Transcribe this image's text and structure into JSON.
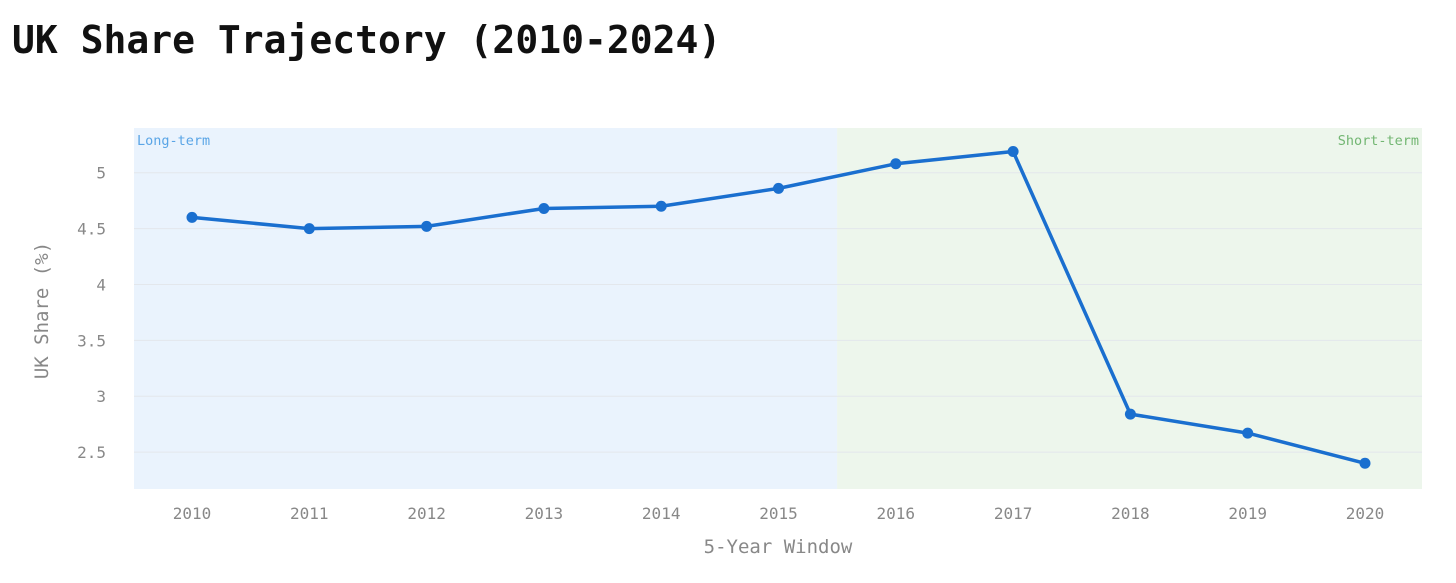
{
  "chart_data": {
    "type": "line",
    "title": "UK Share Trajectory (2010-2024)",
    "xlabel": "5-Year Window",
    "ylabel": "UK Share (%)",
    "categories": [
      "2010",
      "2011",
      "2012",
      "2013",
      "2014",
      "2015",
      "2016",
      "2017",
      "2018",
      "2019",
      "2020"
    ],
    "series": [
      {
        "values": [
          4.6,
          4.5,
          4.52,
          4.68,
          4.7,
          4.86,
          5.08,
          5.19,
          2.84,
          2.67,
          2.4
        ],
        "color": "#1a6fcf"
      }
    ],
    "ylim": [
      2.17,
      5.4
    ],
    "yticks": [
      2.5,
      3,
      3.5,
      4,
      4.5,
      5
    ],
    "ytick_labels": [
      "2.5",
      "3",
      "3.5",
      "4",
      "4.5",
      "5"
    ],
    "grid": true,
    "regions": [
      {
        "label": "Long-term",
        "from": "2010",
        "to": "2015",
        "fill": "#eaf3fd",
        "label_color": "#5aa5e6",
        "label_position": "top-left"
      },
      {
        "label": "Short-term",
        "from": "2016",
        "to": "2020",
        "fill": "#edf6ec",
        "label_color": "#72b672",
        "label_position": "top-right"
      }
    ]
  }
}
